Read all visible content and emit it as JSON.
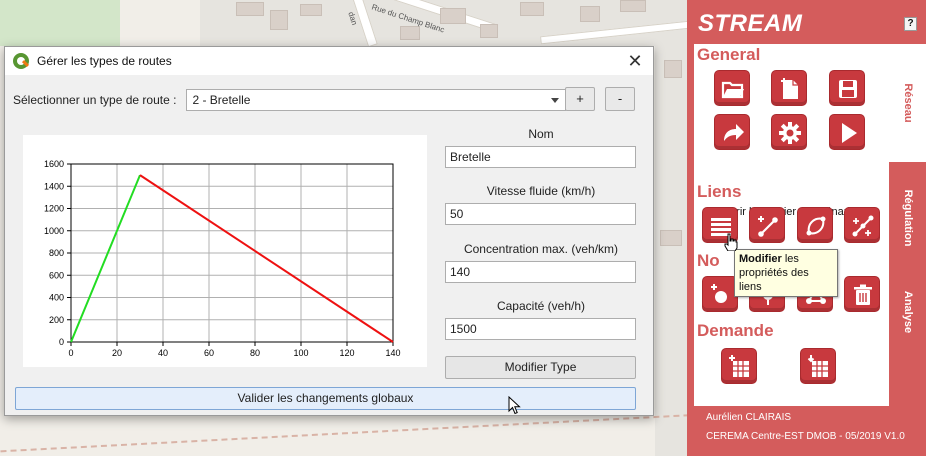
{
  "map": {
    "street_name": "Rue du Champ Blanc",
    "street_fragment": "dan"
  },
  "dialog": {
    "title": "Gérer les types de routes",
    "close_symbol": "✕",
    "type_label": "Sélectionner un type de route :",
    "type_selected": "2 - Bretelle",
    "add_label": "+",
    "remove_label": "-",
    "fields": [
      {
        "label": "Nom",
        "value": "Bretelle"
      },
      {
        "label": "Vitesse fluide (km/h)",
        "value": "50"
      },
      {
        "label": "Concentration max. (veh/km)",
        "value": "140"
      },
      {
        "label": "Capacité (veh/h)",
        "value": "1500"
      }
    ],
    "modify_type_label": "Modifier Type",
    "validate_label": "Valider les changements globaux"
  },
  "chart_data": {
    "type": "line",
    "title": "",
    "xlabel": "",
    "ylabel": "",
    "xlim": [
      0,
      140
    ],
    "ylim": [
      0,
      1600
    ],
    "xticks": [
      0,
      20,
      40,
      60,
      80,
      100,
      120,
      140
    ],
    "yticks": [
      0,
      200,
      400,
      600,
      800,
      1000,
      1200,
      1400,
      1600
    ],
    "grid": true,
    "series": [
      {
        "color": "#22dd22",
        "x": [
          0,
          30
        ],
        "y": [
          0,
          1500
        ]
      },
      {
        "color": "#ee1111",
        "x": [
          30,
          140
        ],
        "y": [
          1500,
          0
        ]
      }
    ]
  },
  "panel": {
    "title": "STREAM",
    "help_label": "?",
    "sections": {
      "general": "General",
      "liens": "Liens",
      "noeuds_visible": "No",
      "demande": "Demande"
    },
    "status_text": "Ouvrir le dossier du scénario",
    "tooltip": {
      "bold": "Modifier",
      "rest": " les propriétés des liens"
    },
    "tabs": [
      "Réseau",
      "Régulation",
      "Analyse"
    ],
    "footer_author": "Aurélien CLAIRAIS",
    "footer_org": "CEREMA Centre-EST DMOB - 05/2019 V1.0",
    "accent_color": "#d45c5c",
    "button_color": "#c8393e"
  },
  "icons": {
    "general": [
      "open-folder-icon",
      "new-file-icon",
      "save-icon",
      "share-arrow-icon",
      "settings-gear-icon",
      "play-icon"
    ],
    "liens": [
      "list-lines-icon",
      "add-link-icon",
      "reverse-link-icon",
      "split-link-icon"
    ],
    "noeuds": [
      "add-node-icon",
      "node-edit-icon",
      "node-graph-icon",
      "delete-icon"
    ],
    "demande": [
      "add-demand-table-icon",
      "import-demand-table-icon"
    ]
  }
}
